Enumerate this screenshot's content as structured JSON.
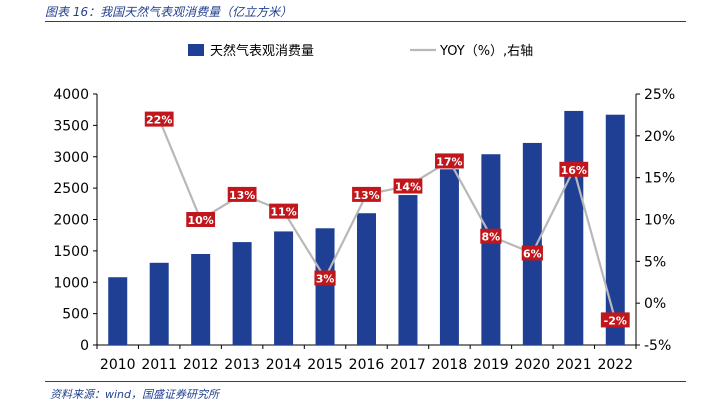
{
  "figure": {
    "title": "图表 16：我国天然气表观消费量（亿立方米）",
    "source": "资料来源：wind，国盛证券研究所"
  },
  "chart_data": {
    "type": "bar",
    "categories": [
      "2010",
      "2011",
      "2012",
      "2013",
      "2014",
      "2015",
      "2016",
      "2017",
      "2018",
      "2019",
      "2020",
      "2021",
      "2022"
    ],
    "series": [
      {
        "name": "天然气表观消费量",
        "type": "bar",
        "axis": "left",
        "color": "#1f3f94",
        "values": [
          1080,
          1310,
          1450,
          1640,
          1810,
          1860,
          2100,
          2390,
          2800,
          3040,
          3220,
          3730,
          3670
        ]
      },
      {
        "name": "YOY（%）,右轴",
        "type": "line",
        "axis": "right",
        "color": "#b8b8b8",
        "values": [
          null,
          22,
          10,
          13,
          11,
          3,
          13,
          14,
          17,
          8,
          6,
          16,
          -2
        ],
        "labels": [
          null,
          "22%",
          "10%",
          "13%",
          "11%",
          "3%",
          "13%",
          "14%",
          "17%",
          "8%",
          "6%",
          "16%",
          "-2%"
        ]
      }
    ],
    "y_left": {
      "min": 0,
      "max": 4000,
      "ticks": [
        0,
        500,
        1000,
        1500,
        2000,
        2500,
        3000,
        3500,
        4000
      ]
    },
    "y_right": {
      "min": -5,
      "max": 25,
      "ticks": [
        "-5%",
        "0%",
        "5%",
        "10%",
        "15%",
        "20%",
        "25%"
      ]
    },
    "legend_position": "top",
    "grid": false,
    "label_style": {
      "fill": "#c0161c",
      "text": "#ffffff"
    }
  }
}
